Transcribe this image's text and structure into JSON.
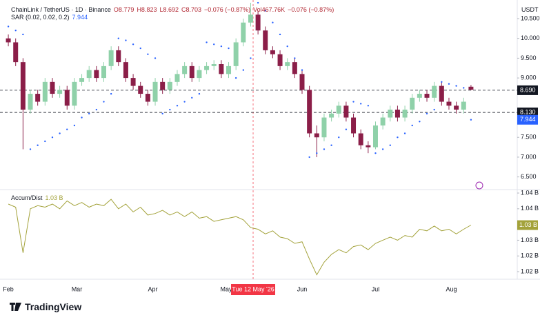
{
  "chart_data": {
    "type": "candlestick",
    "symbol": "ChainLink / TetherUS · 1D · Binance",
    "legend_values": [
      "O8.779",
      "H8.823",
      "L8.692",
      "C8.703",
      "−0.076 (−0.87%)",
      "Vol467.76K",
      "−0.076 (−0.87%)"
    ],
    "currency": "USDT",
    "up_color": "#8fd1a9",
    "down_color": "#8b1e48",
    "x": [
      0,
      3,
      6,
      9,
      12,
      15,
      18,
      21,
      24,
      27,
      30,
      33,
      36,
      39,
      42,
      45,
      48,
      51,
      54,
      57,
      60,
      63,
      66,
      69,
      72,
      75,
      78,
      81,
      84,
      87,
      90,
      93,
      96,
      99,
      102,
      105,
      108,
      111,
      114,
      117,
      120,
      123,
      126,
      129,
      132,
      135,
      138,
      141,
      144,
      147,
      150,
      153,
      156,
      159,
      162,
      165,
      168,
      171,
      174,
      177,
      180,
      183,
      186,
      189
    ],
    "open": [
      10.0,
      9.9,
      9.4,
      8.2,
      8.6,
      8.4,
      8.9,
      8.6,
      8.7,
      8.3,
      8.9,
      9.0,
      9.2,
      9.0,
      9.3,
      9.7,
      9.4,
      9.0,
      8.8,
      8.6,
      8.4,
      8.9,
      8.7,
      8.9,
      9.1,
      9.3,
      9.0,
      9.2,
      9.3,
      9.35,
      9.1,
      9.3,
      9.9,
      10.4,
      10.6,
      10.2,
      9.7,
      9.6,
      9.3,
      9.4,
      9.1,
      8.7,
      7.6,
      7.5,
      8.0,
      8.1,
      8.3,
      8.0,
      7.6,
      7.3,
      7.25,
      7.8,
      8.0,
      8.2,
      8.0,
      8.2,
      8.5,
      8.6,
      8.5,
      8.8,
      8.4,
      8.3,
      8.2,
      8.779
    ],
    "high": [
      10.1,
      10.0,
      9.5,
      8.7,
      8.7,
      9.0,
      9.0,
      8.8,
      8.8,
      9.0,
      9.1,
      9.3,
      9.3,
      9.4,
      9.8,
      9.8,
      9.5,
      9.1,
      8.9,
      8.7,
      9.0,
      9.0,
      9.0,
      9.2,
      9.4,
      9.4,
      9.3,
      9.4,
      9.45,
      9.45,
      9.4,
      10.0,
      10.5,
      10.9,
      10.7,
      10.3,
      9.8,
      9.7,
      9.5,
      9.5,
      9.2,
      8.8,
      7.8,
      8.1,
      8.2,
      8.4,
      8.4,
      8.1,
      7.7,
      7.4,
      7.9,
      8.1,
      8.3,
      8.3,
      8.3,
      8.6,
      8.7,
      8.7,
      8.9,
      8.9,
      8.5,
      8.4,
      8.5,
      8.823
    ],
    "low": [
      9.8,
      9.3,
      7.2,
      8.1,
      8.3,
      8.3,
      8.5,
      8.5,
      8.2,
      8.2,
      8.8,
      8.9,
      8.9,
      8.9,
      9.2,
      9.3,
      8.9,
      8.7,
      8.5,
      8.3,
      8.3,
      8.6,
      8.6,
      8.8,
      9.0,
      8.9,
      8.9,
      9.1,
      9.2,
      9.0,
      9.0,
      9.2,
      9.8,
      10.3,
      10.1,
      9.6,
      9.5,
      9.2,
      9.2,
      9.0,
      8.6,
      7.5,
      7.0,
      7.4,
      7.9,
      8.0,
      7.9,
      7.5,
      7.2,
      7.1,
      7.2,
      7.7,
      7.9,
      7.9,
      7.9,
      8.1,
      8.4,
      8.4,
      8.4,
      8.3,
      8.2,
      8.1,
      8.1,
      8.692
    ],
    "close": [
      9.9,
      9.4,
      8.2,
      8.6,
      8.4,
      8.9,
      8.6,
      8.7,
      8.3,
      8.9,
      9.0,
      9.2,
      9.0,
      9.3,
      9.7,
      9.4,
      9.0,
      8.8,
      8.6,
      8.4,
      8.9,
      8.7,
      8.9,
      9.1,
      9.3,
      9.0,
      9.2,
      9.3,
      9.35,
      9.1,
      9.3,
      9.9,
      10.4,
      10.6,
      10.2,
      9.7,
      9.6,
      9.3,
      9.4,
      9.1,
      8.7,
      7.6,
      7.5,
      8.0,
      8.1,
      8.3,
      8.0,
      7.6,
      7.3,
      7.25,
      7.8,
      8.0,
      8.2,
      8.0,
      8.2,
      8.5,
      8.6,
      8.5,
      8.8,
      8.4,
      8.3,
      8.2,
      8.4,
      8.703
    ],
    "xlim": [
      -3.4,
      207.9
    ],
    "xticks": [
      {
        "value": 0,
        "label": "Feb"
      },
      {
        "value": 28,
        "label": "Mar"
      },
      {
        "value": 59,
        "label": "Apr"
      },
      {
        "value": 89,
        "label": "May"
      },
      {
        "value": 120,
        "label": "Jun"
      },
      {
        "value": 150,
        "label": "Jul"
      },
      {
        "value": 181,
        "label": "Aug"
      }
    ],
    "crosshair": {
      "value": 100,
      "label": "Tue 12 May '26"
    },
    "ylim": [
      6.18,
      10.97
    ],
    "yticks": [
      {
        "value": 6.5,
        "label": "6.500"
      },
      {
        "value": 7,
        "label": "7.000"
      },
      {
        "value": 7.5,
        "label": "7.500"
      },
      {
        "value": 9,
        "label": "9.000"
      },
      {
        "value": 9.5,
        "label": "9.500"
      },
      {
        "value": 10,
        "label": "10.000"
      },
      {
        "value": 10.5,
        "label": "10.500"
      }
    ],
    "hlines": [
      {
        "value": 8.69,
        "label": "8.690"
      },
      {
        "value": 8.13,
        "label": "8.130"
      }
    ],
    "sar": {
      "name": "SAR (0.02, 0.02, 0.2)",
      "last": {
        "value": 7.944,
        "label": "7.944"
      },
      "color": "#2962ff",
      "values": [
        10.3,
        10.2,
        10.1,
        7.2,
        7.3,
        7.4,
        7.5,
        7.6,
        7.7,
        7.8,
        8.0,
        8.1,
        8.2,
        8.4,
        8.6,
        10.0,
        9.95,
        9.85,
        9.75,
        9.6,
        9.5,
        8.1,
        8.2,
        8.3,
        8.4,
        8.5,
        8.6,
        9.9,
        9.85,
        9.8,
        9.75,
        9.0,
        9.2,
        9.5,
        10.9,
        10.7,
        10.4,
        10.1,
        9.8,
        9.5,
        9.2,
        7.0,
        7.1,
        7.2,
        7.3,
        7.5,
        7.7,
        8.4,
        8.35,
        8.3,
        7.1,
        7.2,
        7.3,
        7.5,
        7.6,
        7.8,
        7.9,
        8.1,
        8.2,
        8.9,
        8.85,
        8.8,
        8.75,
        7.944
      ]
    },
    "accum_dist": {
      "name": "Accum/Dist",
      "last": {
        "value": 1.0348,
        "label": "1.03 B"
      },
      "color": "#a3a23a",
      "ylim": [
        1.0176,
        1.0461
      ],
      "yticks": [
        {
          "value": 1.02,
          "label": "1.02 B"
        },
        {
          "value": 1.025,
          "label": "1.02 B"
        },
        {
          "value": 1.03,
          "label": "1.03 B"
        },
        {
          "value": 1.04,
          "label": "1.04 B"
        },
        {
          "value": 1.045,
          "label": "1.04 B"
        }
      ],
      "values": [
        1.0415,
        1.0405,
        1.026,
        1.04,
        1.041,
        1.0405,
        1.0415,
        1.04,
        1.0425,
        1.041,
        1.042,
        1.0405,
        1.0415,
        1.041,
        1.043,
        1.04,
        1.0415,
        1.039,
        1.0405,
        1.038,
        1.0385,
        1.0395,
        1.038,
        1.039,
        1.0375,
        1.039,
        1.037,
        1.0375,
        1.036,
        1.0365,
        1.037,
        1.0375,
        1.0365,
        1.034,
        1.0335,
        1.032,
        1.033,
        1.031,
        1.0305,
        1.029,
        1.0295,
        1.024,
        1.019,
        1.023,
        1.0255,
        1.027,
        1.026,
        1.028,
        1.0285,
        1.027,
        1.029,
        1.03,
        1.031,
        1.03,
        1.0315,
        1.031,
        1.0335,
        1.033,
        1.0345,
        1.033,
        1.0335,
        1.032,
        1.0335,
        1.0348
      ]
    },
    "brand": "TradingView"
  }
}
